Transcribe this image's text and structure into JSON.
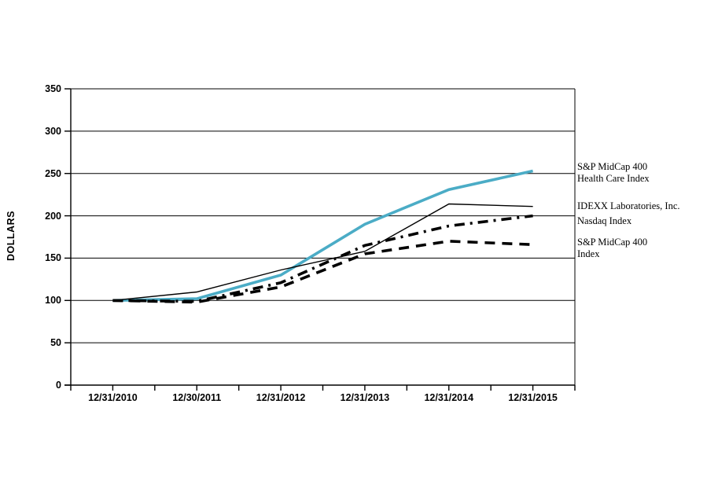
{
  "chart_data": {
    "type": "line",
    "title": "",
    "xlabel": "",
    "ylabel": "DOLLARS",
    "ylim": [
      0,
      350
    ],
    "y_ticks": [
      0,
      50,
      100,
      150,
      200,
      250,
      300,
      350
    ],
    "grid": "horizontal",
    "legend_position": "right-outside",
    "categories": [
      "12/31/2010",
      "12/30/2011",
      "12/31/2012",
      "12/31/2013",
      "12/31/2014",
      "12/31/2015"
    ],
    "series": [
      {
        "name": "S&P MidCap 400 Health Care Index",
        "legend_label": "S&P MidCap 400\nHealth Care Index",
        "values": [
          100,
          102,
          130,
          190,
          231,
          253
        ],
        "color": "#4bacc6",
        "line_style": "solid",
        "thickness": "thick"
      },
      {
        "name": "IDEXX Laboratories, Inc.",
        "legend_label": "IDEXX Laboratories, Inc.",
        "values": [
          100,
          110,
          136,
          158,
          214,
          211
        ],
        "color": "#000000",
        "line_style": "solid",
        "thickness": "thin"
      },
      {
        "name": "Nasdaq Index",
        "legend_label": "Nasdaq Index",
        "values": [
          100,
          99,
          121,
          165,
          188,
          200
        ],
        "color": "#000000",
        "line_style": "dashdot",
        "thickness": "thick"
      },
      {
        "name": "S&P MidCap 400 Index",
        "legend_label": "S&P MidCap 400\nIndex",
        "values": [
          100,
          98,
          116,
          155,
          170,
          166
        ],
        "color": "#000000",
        "line_style": "dash",
        "thickness": "thick"
      }
    ],
    "axis_color": "#000000",
    "background_color": "#ffffff"
  }
}
